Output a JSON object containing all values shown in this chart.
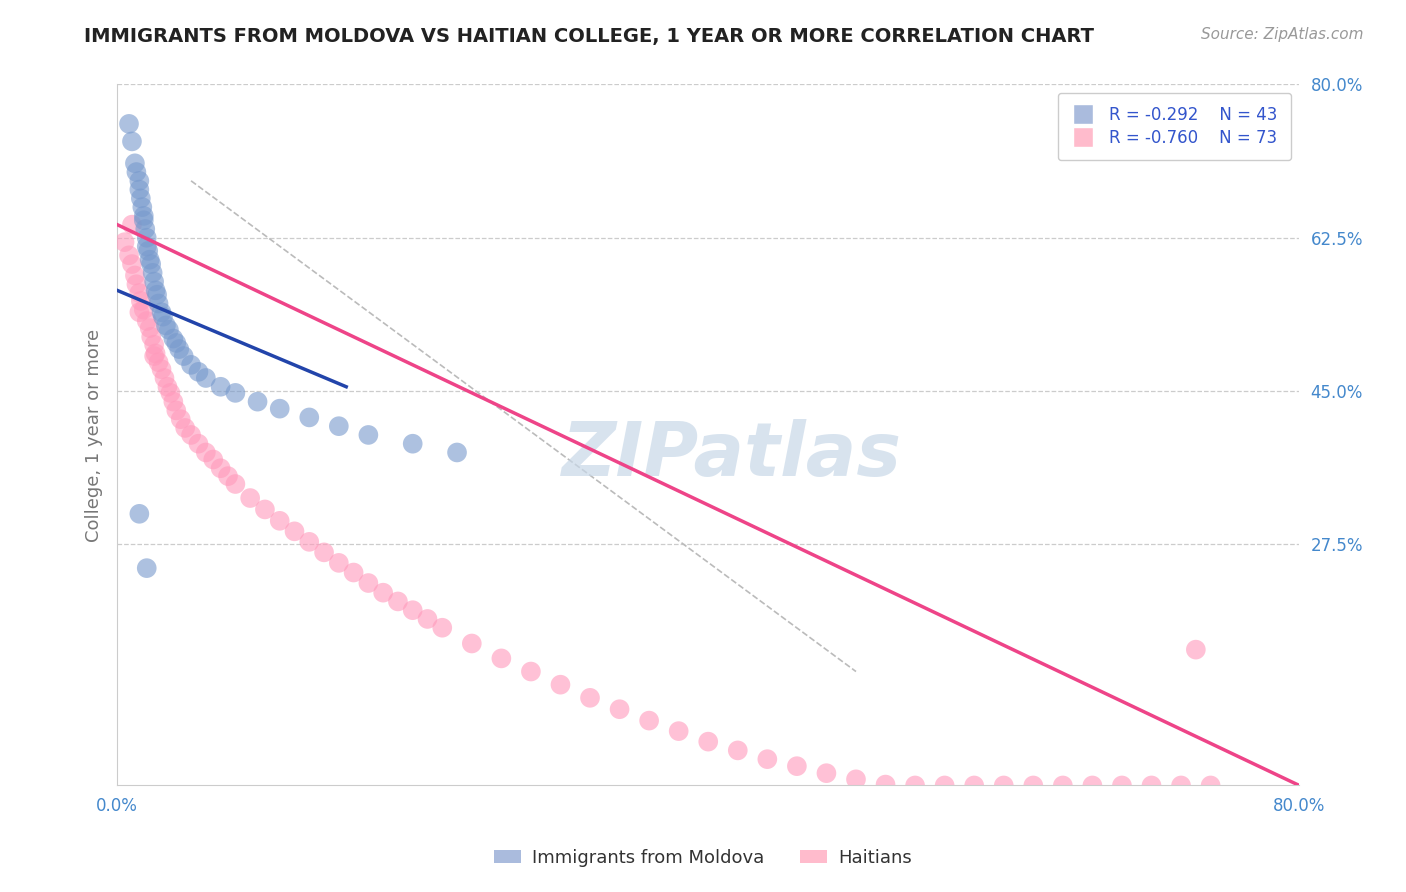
{
  "title": "IMMIGRANTS FROM MOLDOVA VS HAITIAN COLLEGE, 1 YEAR OR MORE CORRELATION CHART",
  "source_text": "Source: ZipAtlas.com",
  "ylabel": "College, 1 year or more",
  "xlim": [
    0.0,
    0.8
  ],
  "ylim": [
    0.0,
    0.8
  ],
  "ytick_labels": [
    "27.5%",
    "45.0%",
    "62.5%",
    "80.0%"
  ],
  "ytick_positions": [
    0.275,
    0.45,
    0.625,
    0.8
  ],
  "grid_color": "#cccccc",
  "background_color": "#ffffff",
  "blue_color": "#7799cc",
  "pink_color": "#ff99bb",
  "blue_line_color": "#2244aa",
  "pink_line_color": "#ee4488",
  "dash_line_color": "#bbbbbb",
  "tick_label_color": "#4488cc",
  "axis_label_color": "#777777",
  "title_color": "#222222",
  "legend_value_color": "#3355cc",
  "watermark_color": "#c8d8e8",
  "blue_pts_x": [
    0.008,
    0.01,
    0.012,
    0.013,
    0.015,
    0.015,
    0.016,
    0.017,
    0.018,
    0.018,
    0.019,
    0.02,
    0.02,
    0.021,
    0.022,
    0.023,
    0.024,
    0.025,
    0.026,
    0.027,
    0.028,
    0.03,
    0.031,
    0.033,
    0.035,
    0.038,
    0.04,
    0.042,
    0.045,
    0.05,
    0.055,
    0.06,
    0.07,
    0.08,
    0.095,
    0.11,
    0.13,
    0.15,
    0.17,
    0.2,
    0.23,
    0.015,
    0.02
  ],
  "blue_pts_y": [
    0.755,
    0.735,
    0.71,
    0.7,
    0.69,
    0.68,
    0.67,
    0.66,
    0.65,
    0.645,
    0.635,
    0.625,
    0.615,
    0.61,
    0.6,
    0.595,
    0.585,
    0.575,
    0.565,
    0.56,
    0.55,
    0.54,
    0.535,
    0.525,
    0.52,
    0.51,
    0.505,
    0.498,
    0.49,
    0.48,
    0.472,
    0.465,
    0.455,
    0.448,
    0.438,
    0.43,
    0.42,
    0.41,
    0.4,
    0.39,
    0.38,
    0.31,
    0.248
  ],
  "pink_pts_x": [
    0.005,
    0.008,
    0.01,
    0.012,
    0.013,
    0.015,
    0.016,
    0.018,
    0.02,
    0.022,
    0.023,
    0.025,
    0.026,
    0.028,
    0.03,
    0.032,
    0.034,
    0.036,
    0.038,
    0.04,
    0.043,
    0.046,
    0.05,
    0.055,
    0.06,
    0.065,
    0.07,
    0.075,
    0.08,
    0.09,
    0.1,
    0.11,
    0.12,
    0.13,
    0.14,
    0.15,
    0.16,
    0.17,
    0.18,
    0.19,
    0.2,
    0.21,
    0.22,
    0.24,
    0.26,
    0.28,
    0.3,
    0.32,
    0.34,
    0.36,
    0.38,
    0.4,
    0.42,
    0.44,
    0.46,
    0.48,
    0.5,
    0.52,
    0.54,
    0.56,
    0.58,
    0.6,
    0.62,
    0.64,
    0.66,
    0.68,
    0.7,
    0.72,
    0.74,
    0.01,
    0.015,
    0.025,
    0.73
  ],
  "pink_pts_y": [
    0.62,
    0.605,
    0.595,
    0.582,
    0.572,
    0.562,
    0.553,
    0.543,
    0.53,
    0.522,
    0.512,
    0.503,
    0.493,
    0.483,
    0.475,
    0.465,
    0.455,
    0.448,
    0.438,
    0.428,
    0.418,
    0.408,
    0.4,
    0.39,
    0.38,
    0.372,
    0.362,
    0.353,
    0.344,
    0.328,
    0.315,
    0.302,
    0.29,
    0.278,
    0.266,
    0.254,
    0.243,
    0.231,
    0.22,
    0.21,
    0.2,
    0.19,
    0.18,
    0.162,
    0.145,
    0.13,
    0.115,
    0.1,
    0.087,
    0.074,
    0.062,
    0.05,
    0.04,
    0.03,
    0.022,
    0.014,
    0.007,
    0.001,
    0.0,
    0.0,
    0.0,
    0.0,
    0.0,
    0.0,
    0.0,
    0.0,
    0.0,
    0.0,
    0.0,
    0.64,
    0.54,
    0.49,
    0.155
  ],
  "blue_line": [
    [
      0.0,
      0.565
    ],
    [
      0.155,
      0.455
    ]
  ],
  "pink_line": [
    [
      0.0,
      0.64
    ],
    [
      0.8,
      0.0
    ]
  ],
  "dash_line": [
    [
      0.05,
      0.69
    ],
    [
      0.5,
      0.13
    ]
  ]
}
